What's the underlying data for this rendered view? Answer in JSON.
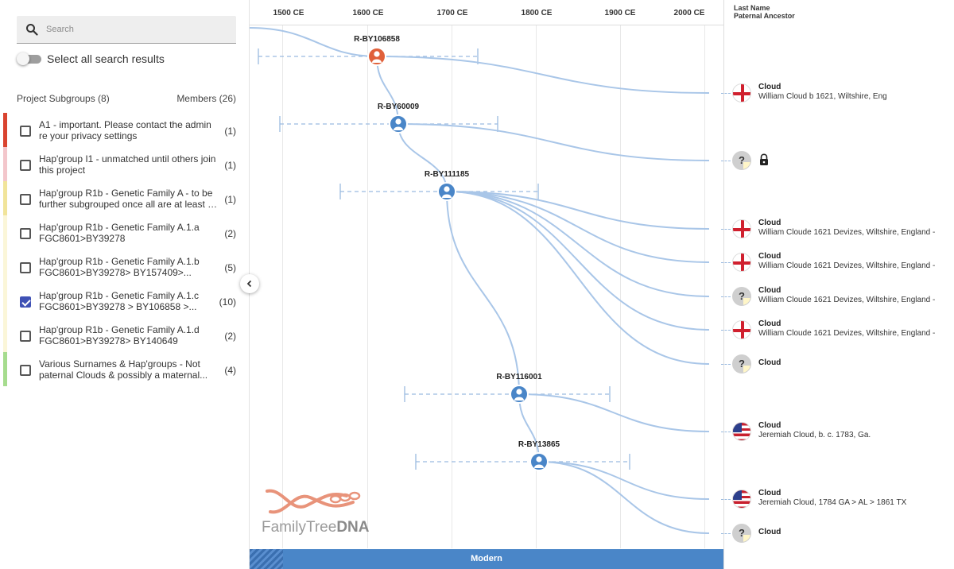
{
  "sidebar": {
    "search": {
      "placeholder": "Search"
    },
    "select_all_label": "Select all search results",
    "subgroups_header": "Project Subgroups (8)",
    "members_header": "Members (26)",
    "subgroups": [
      {
        "line1": "A1 - important. Please contact the admin",
        "line2": "re your privacy settings",
        "count": "(1)",
        "color": "#d9432f",
        "checked": false
      },
      {
        "line1": "Hap'group I1 - unmatched until others join",
        "line2": "this project",
        "count": "(1)",
        "color": "#f3c6cb",
        "checked": false
      },
      {
        "line1": "Hap'group R1b - Genetic Family A - to be",
        "line2": "further subgrouped once all are at least a...",
        "count": "(1)",
        "color": "#f1e49a",
        "checked": false
      },
      {
        "line1": "Hap'group R1b - Genetic Family A.1.a",
        "line2": "FGC8601>BY39278",
        "count": "(2)",
        "color": "#fbf6d8",
        "checked": false
      },
      {
        "line1": "Hap'group R1b - Genetic Family A.1.b",
        "line2": "FGC8601>BY39278> BY157409>...",
        "count": "(5)",
        "color": "#fbf6d8",
        "checked": false
      },
      {
        "line1": "Hap'group R1b - Genetic Family A.1.c",
        "line2": "FGC8601>BY39278 > BY106858 >...",
        "count": "(10)",
        "color": "#fbf6d8",
        "checked": true
      },
      {
        "line1": "Hap'group R1b - Genetic Family A.1.d",
        "line2": "FGC8601>BY39278> BY140649",
        "count": "(2)",
        "color": "#fbf6d8",
        "checked": false
      },
      {
        "line1": "Various Surnames & Hap'groups - Not",
        "line2": "paternal Clouds & possibly a maternal...",
        "count": "(4)",
        "color": "#a6dc8e",
        "checked": false
      }
    ]
  },
  "timeline": {
    "ticks": [
      "1500 CE",
      "1600 CE",
      "1700 CE",
      "1800 CE",
      "1900 CE",
      "2000 CE"
    ],
    "nodes": [
      {
        "label": "R-BY106858",
        "color": "#e0603a"
      },
      {
        "label": "R-BY60009",
        "color": "#4a86c8"
      },
      {
        "label": "R-BY111185",
        "color": "#4a86c8"
      },
      {
        "label": "R-BY116001",
        "color": "#4a86c8"
      },
      {
        "label": "R-BY13865",
        "color": "#4a86c8"
      }
    ],
    "modern_label": "Modern",
    "logo_text_a": "FamilyTree",
    "logo_text_b": "DNA"
  },
  "right": {
    "header_line1": "Last Name",
    "header_line2": "Paternal Ancestor",
    "ancestors": [
      {
        "flag": "eng",
        "name": "Cloud",
        "sub": "William Cloud b 1621, Wiltshire, Eng"
      },
      {
        "flag": "unk",
        "name": "",
        "sub": "",
        "locked": true
      },
      {
        "flag": "eng",
        "name": "Cloud",
        "sub": "William Cloude 1621 Devizes, Wiltshire, England -"
      },
      {
        "flag": "eng",
        "name": "Cloud",
        "sub": "William Cloude 1621 Devizes, Wiltshire, England -"
      },
      {
        "flag": "unk",
        "name": "Cloud",
        "sub": "William Cloude 1621 Devizes, Wiltshire, England -"
      },
      {
        "flag": "eng",
        "name": "Cloud",
        "sub": "William Cloude 1621 Devizes, Wiltshire, England -"
      },
      {
        "flag": "unk",
        "name": "Cloud",
        "sub": ""
      },
      {
        "flag": "usa",
        "name": "Cloud",
        "sub": "Jeremiah Cloud, b. c. 1783, Ga."
      },
      {
        "flag": "usa",
        "name": "Cloud",
        "sub": "Jeremiah Cloud, 1784 GA > AL > 1861 TX"
      },
      {
        "flag": "unk",
        "name": "Cloud",
        "sub": ""
      }
    ]
  }
}
